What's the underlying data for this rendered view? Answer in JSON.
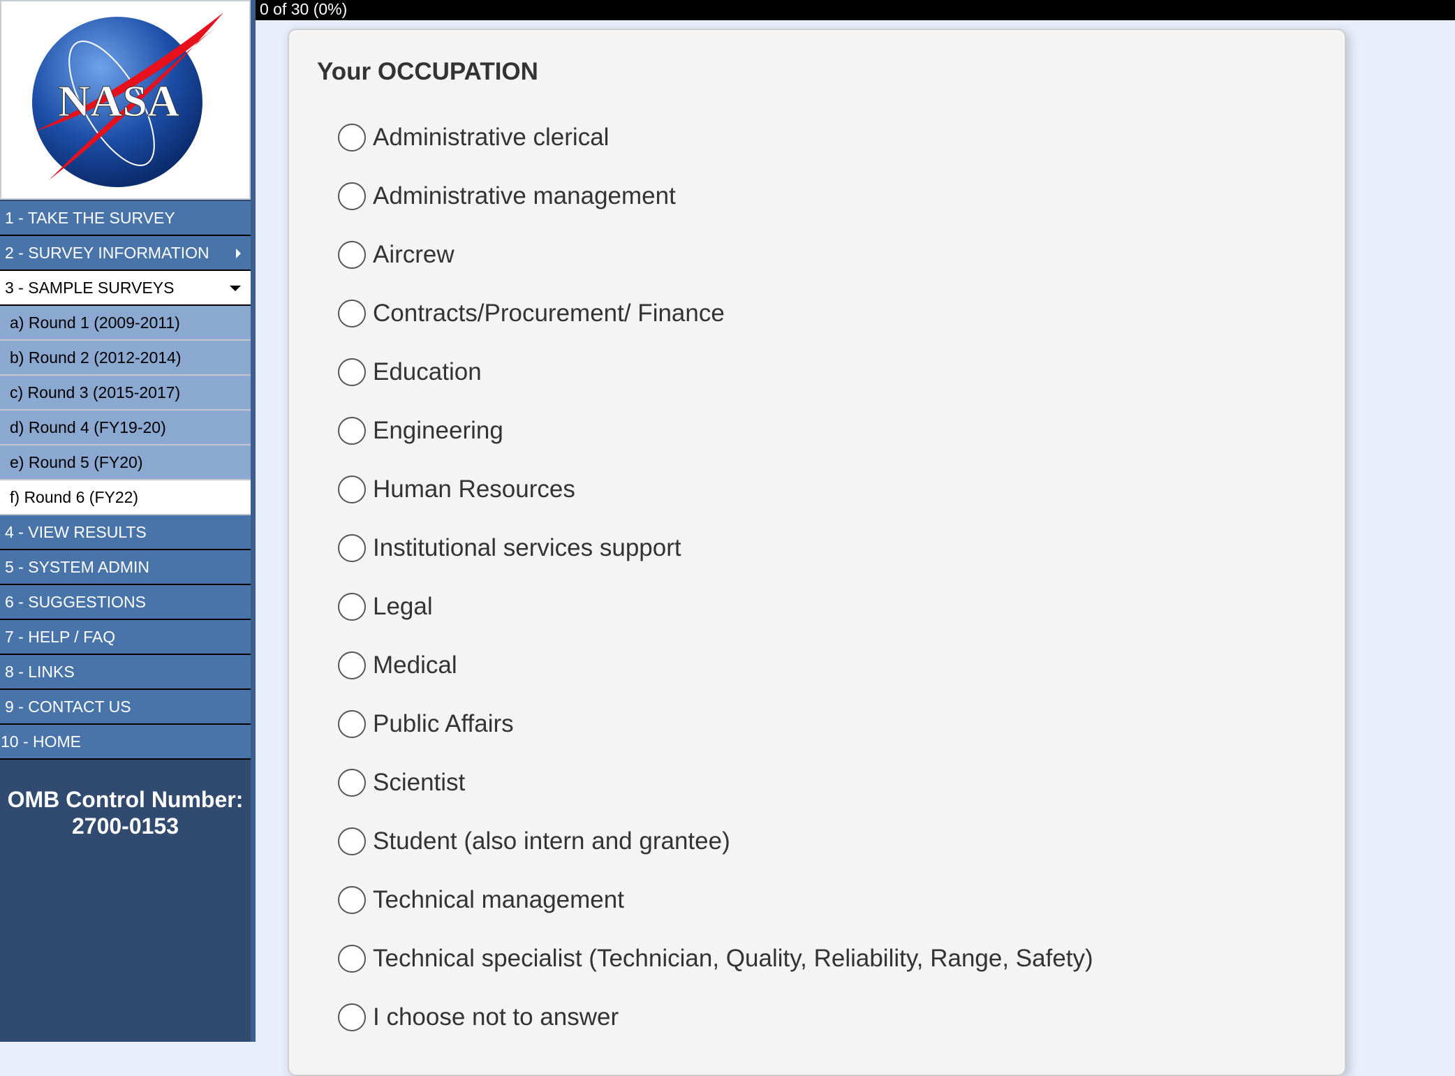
{
  "progress": {
    "text": "0 of 30 (0%)",
    "value": 0
  },
  "logo": {
    "text": "NASA"
  },
  "sidebar": {
    "items": [
      {
        "label": "1 - TAKE THE SURVEY"
      },
      {
        "label": "2 - SURVEY INFORMATION"
      },
      {
        "label": "3 - SAMPLE SURVEYS"
      },
      {
        "label": "4 - VIEW RESULTS"
      },
      {
        "label": "5 - SYSTEM ADMIN"
      },
      {
        "label": "6 - SUGGESTIONS"
      },
      {
        "label": "7 - HELP / FAQ"
      },
      {
        "label": "8 - LINKS"
      },
      {
        "label": "9 - CONTACT US"
      },
      {
        "label": "10 - HOME"
      }
    ],
    "sample_surveys": [
      {
        "label": "a) Round 1 (2009-2011)"
      },
      {
        "label": "b) Round 2 (2012-2014)"
      },
      {
        "label": "c) Round 3 (2015-2017)"
      },
      {
        "label": "d) Round 4 (FY19-20)"
      },
      {
        "label": "e) Round 5 (FY20)"
      },
      {
        "label": "f) Round 6 (FY22)"
      }
    ],
    "omb_label": "OMB Control Number:",
    "omb_number": "2700-0153"
  },
  "question": {
    "title": "Your OCCUPATION",
    "options": [
      "Administrative clerical",
      "Administrative management",
      "Aircrew",
      "Contracts/Procurement/ Finance",
      "Education",
      "Engineering",
      "Human Resources",
      "Institutional services support",
      "Legal",
      "Medical",
      "Public Affairs",
      "Scientist",
      "Student (also intern and grantee)",
      "Technical management",
      "Technical specialist (Technician, Quality, Reliability, Range, Safety)",
      "I choose not to answer"
    ]
  }
}
